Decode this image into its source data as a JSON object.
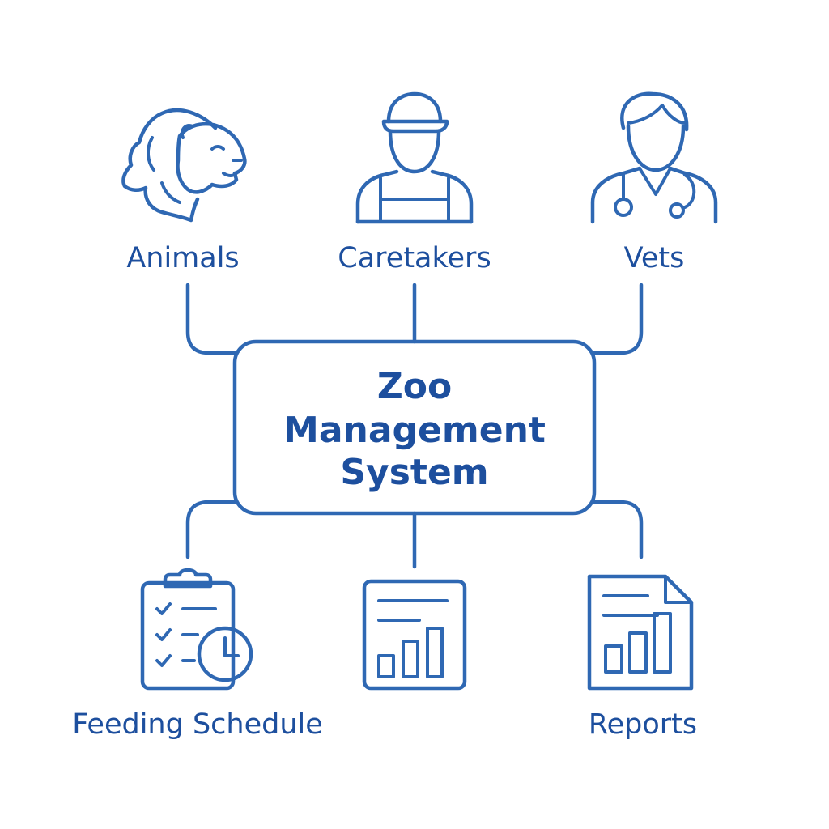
{
  "colors": {
    "stroke": "#2f68b3",
    "text": "#1d4f9e",
    "background": "#ffffff"
  },
  "center": {
    "title_line1": "Zoo",
    "title_line2": "Management",
    "title_line3": "System"
  },
  "nodes": {
    "animals": {
      "label": "Animals",
      "icon": "lion-icon"
    },
    "caretakers": {
      "label": "Caretakers",
      "icon": "caretaker-icon"
    },
    "vets": {
      "label": "Vets",
      "icon": "veterinarian-icon"
    },
    "feeding": {
      "label": "Feeding Schedule",
      "icon": "clipboard-clock-icon"
    },
    "dashboard": {
      "label": "",
      "icon": "bar-chart-window-icon"
    },
    "reports": {
      "label": "Reports",
      "icon": "report-document-icon"
    }
  }
}
